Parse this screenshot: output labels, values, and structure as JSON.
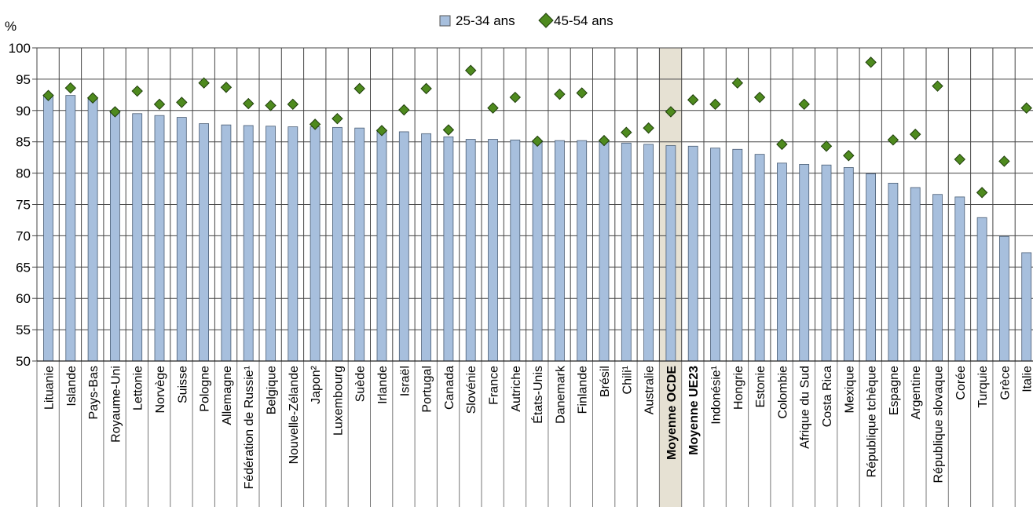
{
  "chart_data": {
    "type": "bar",
    "ylabel": "%",
    "ylim": [
      50,
      100
    ],
    "yticks": [
      50,
      55,
      60,
      65,
      70,
      75,
      80,
      85,
      90,
      95,
      100
    ],
    "grid": true,
    "legend_position": "top-center",
    "categories": [
      "Lituanie",
      "Islande",
      "Pays-Bas",
      "Royaume-Uni",
      "Lettonie",
      "Norvège",
      "Suisse",
      "Pologne",
      "Allemagne",
      "Fédération de Russie¹",
      "Belgique",
      "Nouvelle-Zélande",
      "Japon²",
      "Luxembourg",
      "Suède",
      "Irlande",
      "Israël",
      "Portugal",
      "Canada",
      "Slovénie",
      "France",
      "Autriche",
      "États-Unis",
      "Danemark",
      "Finlande",
      "Brésil",
      "Chili¹",
      "Australie",
      "Moyenne OCDE",
      "Moyenne UE23",
      "Indonésie¹",
      "Hongrie",
      "Estonie",
      "Colombie",
      "Afrique du Sud",
      "Costa Rica",
      "Mexique",
      "République tchèque",
      "Espagne",
      "Argentine",
      "République slovaque",
      "Corée",
      "Turquie",
      "Grèce",
      "Italie"
    ],
    "highlighted_category": "Moyenne OCDE",
    "bold_categories": [
      "Moyenne OCDE",
      "Moyenne UE23"
    ],
    "series": [
      {
        "name": "25-34 ans",
        "kind": "bar",
        "color": "#a7bfdd",
        "values": [
          92.5,
          92.4,
          91.8,
          90.0,
          89.5,
          89.2,
          88.9,
          87.9,
          87.7,
          87.6,
          87.5,
          87.4,
          87.4,
          87.3,
          87.2,
          86.9,
          86.6,
          86.3,
          85.8,
          85.4,
          85.4,
          85.3,
          85.2,
          85.2,
          85.2,
          85.0,
          84.8,
          84.6,
          84.4,
          84.3,
          84.0,
          83.8,
          83.0,
          81.6,
          81.4,
          81.3,
          80.9,
          79.9,
          78.4,
          77.7,
          76.6,
          76.2,
          72.9,
          69.9,
          67.3
        ]
      },
      {
        "name": "45-54 ans",
        "kind": "marker",
        "color": "#4e8a1e",
        "values": [
          92.4,
          93.6,
          92.0,
          89.8,
          93.1,
          91.0,
          91.3,
          94.4,
          93.7,
          91.1,
          90.8,
          91.0,
          87.8,
          88.7,
          93.5,
          86.8,
          90.1,
          93.5,
          86.9,
          96.4,
          90.4,
          92.1,
          85.1,
          92.6,
          92.8,
          85.2,
          86.5,
          87.2,
          89.8,
          91.7,
          91.0,
          94.4,
          92.1,
          84.6,
          91.0,
          84.3,
          82.8,
          97.7,
          85.3,
          86.2,
          93.9,
          82.2,
          76.9,
          81.9,
          90.4
        ]
      }
    ]
  }
}
